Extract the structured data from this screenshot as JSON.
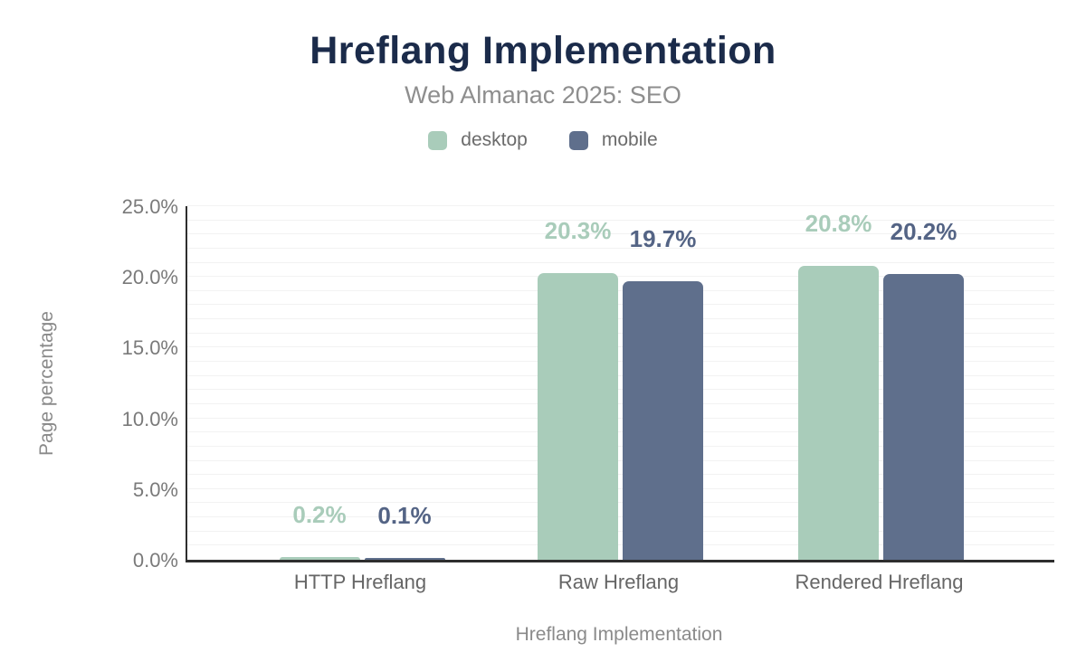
{
  "header": {
    "title": "Hreflang Implementation",
    "subtitle": "Web Almanac 2025: SEO"
  },
  "chart_data": {
    "type": "bar",
    "title": "Hreflang Implementation",
    "subtitle": "Web Almanac 2025: SEO",
    "categories": [
      "HTTP Hreflang",
      "Raw Hreflang",
      "Rendered Hreflang"
    ],
    "series": [
      {
        "name": "desktop",
        "color": "#a9ccba",
        "label_color": "#a9ccba",
        "values": [
          0.2,
          20.3,
          20.8
        ],
        "labels": [
          "0.2%",
          "20.3%",
          "20.8%"
        ]
      },
      {
        "name": "mobile",
        "color": "#5f6f8c",
        "label_color": "#546485",
        "values": [
          0.1,
          19.7,
          20.2
        ],
        "labels": [
          "0.1%",
          "19.7%",
          "20.2%"
        ]
      }
    ],
    "xlabel": "Hreflang Implementation",
    "ylabel": "Page percentage",
    "ylim": [
      0,
      25
    ],
    "ytick_values": [
      0,
      5,
      10,
      15,
      20,
      25
    ],
    "ytick_labels": [
      "0.0%",
      "5.0%",
      "10.0%",
      "15.0%",
      "20.0%",
      "25.0%"
    ],
    "grid_minor_step": 1,
    "grid": "horizontal",
    "legend_position": "top"
  },
  "colors": {
    "title": "#1b2b4a",
    "subtitle_text": "#8e8e8e",
    "axis_line": "#2e2e2e",
    "gridline": "#f2f2f2",
    "tick_text": "#7a7a7a",
    "background": "#ffffff"
  }
}
